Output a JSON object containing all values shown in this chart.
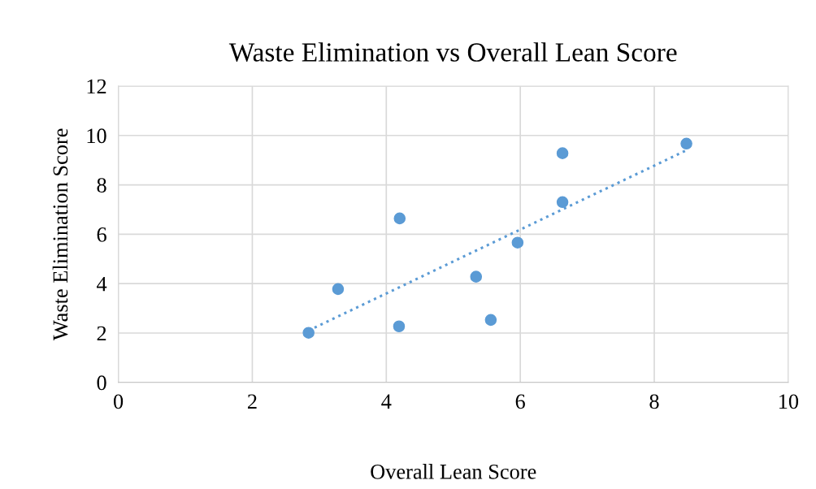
{
  "chart_data": {
    "type": "scatter",
    "title": "Waste Elimination vs Overall Lean Score",
    "xlabel": "Overall Lean Score",
    "ylabel": "Waste Elimination Score",
    "series": [
      {
        "color": "#5b9bd5",
        "marker": "circle",
        "x": [
          2.84,
          3.28,
          4.2,
          4.19,
          5.34,
          5.56,
          5.96,
          6.63,
          6.63,
          8.48
        ],
        "values": [
          2.01,
          3.78,
          6.64,
          2.27,
          4.28,
          2.53,
          5.66,
          9.28,
          7.3,
          9.67
        ]
      },
      {
        "type": "line",
        "color": "#5b9bd5",
        "line_style": "dotted",
        "marker": "none",
        "x": [
          2.84,
          8.48
        ],
        "values": [
          2.1,
          9.4
        ]
      }
    ],
    "xlim": [
      0,
      10
    ],
    "xticks": [
      0,
      2,
      4,
      6,
      8,
      10
    ],
    "ylim": [
      0,
      12
    ],
    "yticks": [
      0,
      2,
      4,
      6,
      8,
      10,
      12
    ],
    "grid": true
  }
}
